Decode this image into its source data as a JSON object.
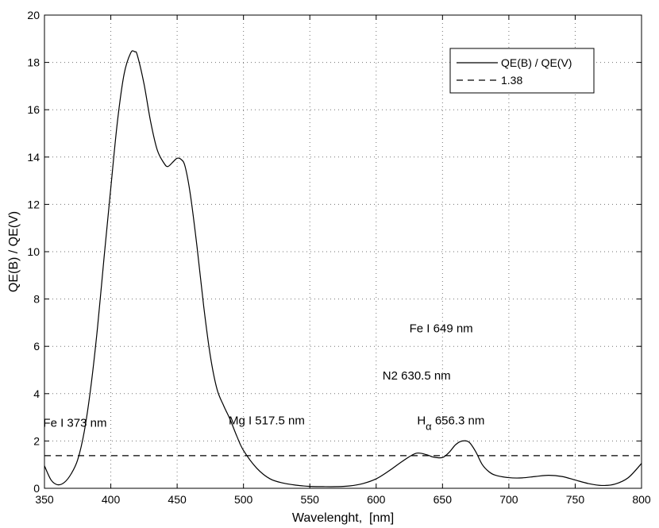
{
  "chart_data": {
    "type": "line",
    "title": "",
    "xlabel": "Wavelenght,  [nm]",
    "ylabel": "QE(B) / QE(V)",
    "xlim": [
      350,
      800
    ],
    "ylim": [
      0,
      20
    ],
    "xticks": [
      350,
      400,
      450,
      500,
      550,
      600,
      650,
      700,
      750,
      800
    ],
    "yticks": [
      0,
      2,
      4,
      6,
      8,
      10,
      12,
      14,
      16,
      18,
      20
    ],
    "grid": true,
    "legend_position": "top-right",
    "series": [
      {
        "name": "QE(B) / QE(V)",
        "style": "solid",
        "color": "#000000",
        "x": [
          350,
          355,
          360,
          365,
          370,
          375,
          380,
          385,
          390,
          395,
          400,
          405,
          410,
          415,
          418,
          420,
          425,
          430,
          435,
          440,
          443,
          447,
          450,
          453,
          456,
          460,
          465,
          470,
          475,
          480,
          485,
          490,
          495,
          500,
          510,
          520,
          530,
          540,
          550,
          560,
          570,
          580,
          590,
          600,
          610,
          620,
          630,
          638,
          643,
          650,
          655,
          660,
          665,
          670,
          675,
          680,
          685,
          690,
          700,
          710,
          720,
          730,
          740,
          750,
          760,
          770,
          780,
          790,
          800
        ],
        "y": [
          0.95,
          0.35,
          0.15,
          0.25,
          0.6,
          1.2,
          2.4,
          4.3,
          6.8,
          9.8,
          12.7,
          15.5,
          17.5,
          18.4,
          18.45,
          18.3,
          17.1,
          15.5,
          14.3,
          13.75,
          13.6,
          13.8,
          13.95,
          13.9,
          13.6,
          12.4,
          10.2,
          7.7,
          5.6,
          4.2,
          3.5,
          2.9,
          2.2,
          1.6,
          0.85,
          0.4,
          0.22,
          0.13,
          0.08,
          0.07,
          0.07,
          0.1,
          0.2,
          0.4,
          0.75,
          1.15,
          1.48,
          1.42,
          1.32,
          1.3,
          1.52,
          1.85,
          2.0,
          1.95,
          1.55,
          1.0,
          0.7,
          0.55,
          0.45,
          0.44,
          0.5,
          0.55,
          0.5,
          0.35,
          0.2,
          0.12,
          0.18,
          0.45,
          1.05
        ]
      },
      {
        "name": "1.38",
        "style": "dashed",
        "color": "#000000",
        "x": [
          350,
          800
        ],
        "y": [
          1.38,
          1.38
        ]
      }
    ],
    "annotations": [
      {
        "text": "Fe I 373 nm",
        "x": 373,
        "y": 2.6
      },
      {
        "text": "Mg I 517.5 nm",
        "x": 517.5,
        "y": 2.7
      },
      {
        "text": "N2 630.5 nm",
        "x": 630.5,
        "y": 4.6
      },
      {
        "text": "Fe I 649 nm",
        "x": 649,
        "y": 6.6
      },
      {
        "text": "H",
        "subscript": "α",
        "suffix": " 656.3 nm",
        "x": 656.3,
        "y": 2.7
      }
    ]
  }
}
